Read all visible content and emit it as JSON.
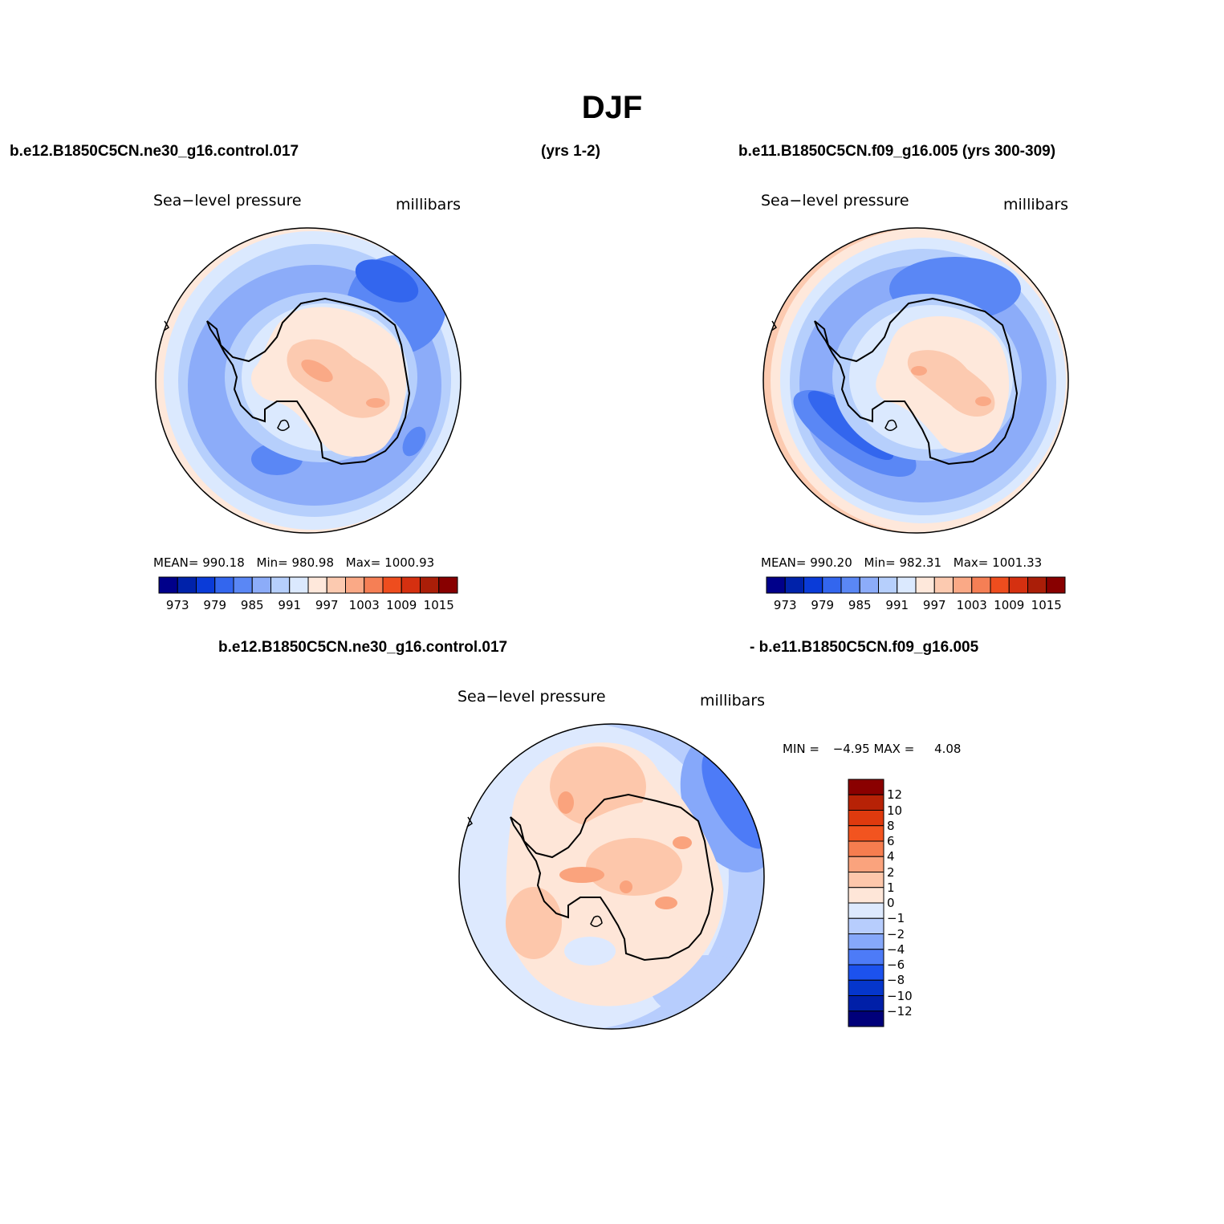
{
  "title": "DJF",
  "header": {
    "case_a": "b.e12.B1850C5CN.ne30_g16.control.017",
    "years_a": "(yrs 1-2)",
    "case_b": "b.e11.B1850C5CN.f09_g16.005 (yrs 300-309)",
    "diff_case_a": "b.e12.B1850C5CN.ne30_g16.control.017",
    "diff_case_b": "- b.e11.B1850C5CN.f09_g16.005"
  },
  "colors": {
    "abs_palette": [
      "#00008a",
      "#0022aa",
      "#0a3bd8",
      "#3366ee",
      "#5a87f5",
      "#8cacf9",
      "#b6cffc",
      "#dbe9fe",
      "#fee8db",
      "#fccab0",
      "#faa986",
      "#f57f55",
      "#ee4d1e",
      "#d53010",
      "#aa1e08",
      "#880000"
    ],
    "diff_palette": [
      "#00007a",
      "#001fa8",
      "#0536cc",
      "#1c52ee",
      "#4d7bf7",
      "#86a8fa",
      "#b7cdfd",
      "#dde9fe",
      "#fee6d8",
      "#fdc7ab",
      "#faa37d",
      "#f67d4f",
      "#f2541f",
      "#df3a0e",
      "#b72206",
      "#8a0000"
    ],
    "coastline": "#000000"
  },
  "panels": [
    {
      "variable": "Sea−level pressure",
      "units": "millibars",
      "stats": {
        "mean_label": "MEAN=",
        "mean": "990.18",
        "min_label": "Min=",
        "min": "980.98",
        "max_label": "Max=",
        "max": "1000.93"
      },
      "colorbar_ticks": [
        "973",
        "979",
        "985",
        "991",
        "997",
        "1003",
        "1009",
        "1015"
      ]
    },
    {
      "variable": "Sea−level pressure",
      "units": "millibars",
      "stats": {
        "mean_label": "MEAN=",
        "mean": "990.20",
        "min_label": "Min=",
        "min": "982.31",
        "max_label": "Max=",
        "max": "1001.33"
      },
      "colorbar_ticks": [
        "973",
        "979",
        "985",
        "991",
        "997",
        "1003",
        "1009",
        "1015"
      ]
    }
  ],
  "diff_panel": {
    "variable": "Sea−level pressure",
    "units": "millibars",
    "stats": {
      "min_label": "MIN =",
      "min": "−4.95",
      "max_label": "MAX =",
      "max": "4.08"
    },
    "colorbar_ticks": [
      "12",
      "10",
      "8",
      "6",
      "4",
      "2",
      "1",
      "0",
      "−1",
      "−2",
      "−4",
      "−6",
      "−8",
      "−10",
      "−12"
    ]
  }
}
